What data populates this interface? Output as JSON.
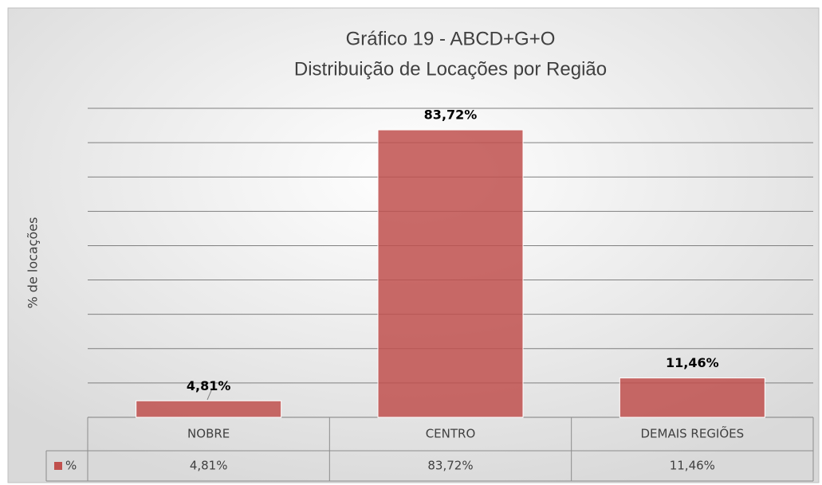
{
  "chart_data": {
    "type": "bar",
    "title": "Gráfico 19 - ABCD+G+O",
    "subtitle": "Distribuição de Locações por Região",
    "y_label": "% de locações",
    "categories": [
      "NOBRE",
      "CENTRO",
      "DEMAIS REGIÕES"
    ],
    "series": [
      {
        "name": "%",
        "color": "#c0504d",
        "values": [
          4.81,
          83.72,
          11.46
        ],
        "value_labels": [
          "4,81%",
          "83,72%",
          "11,46%"
        ]
      }
    ],
    "ylim": [
      0,
      90
    ],
    "yticks": [
      0,
      10,
      20,
      30,
      40,
      50,
      60,
      70,
      80,
      90
    ],
    "grid": true,
    "data_table": true
  }
}
